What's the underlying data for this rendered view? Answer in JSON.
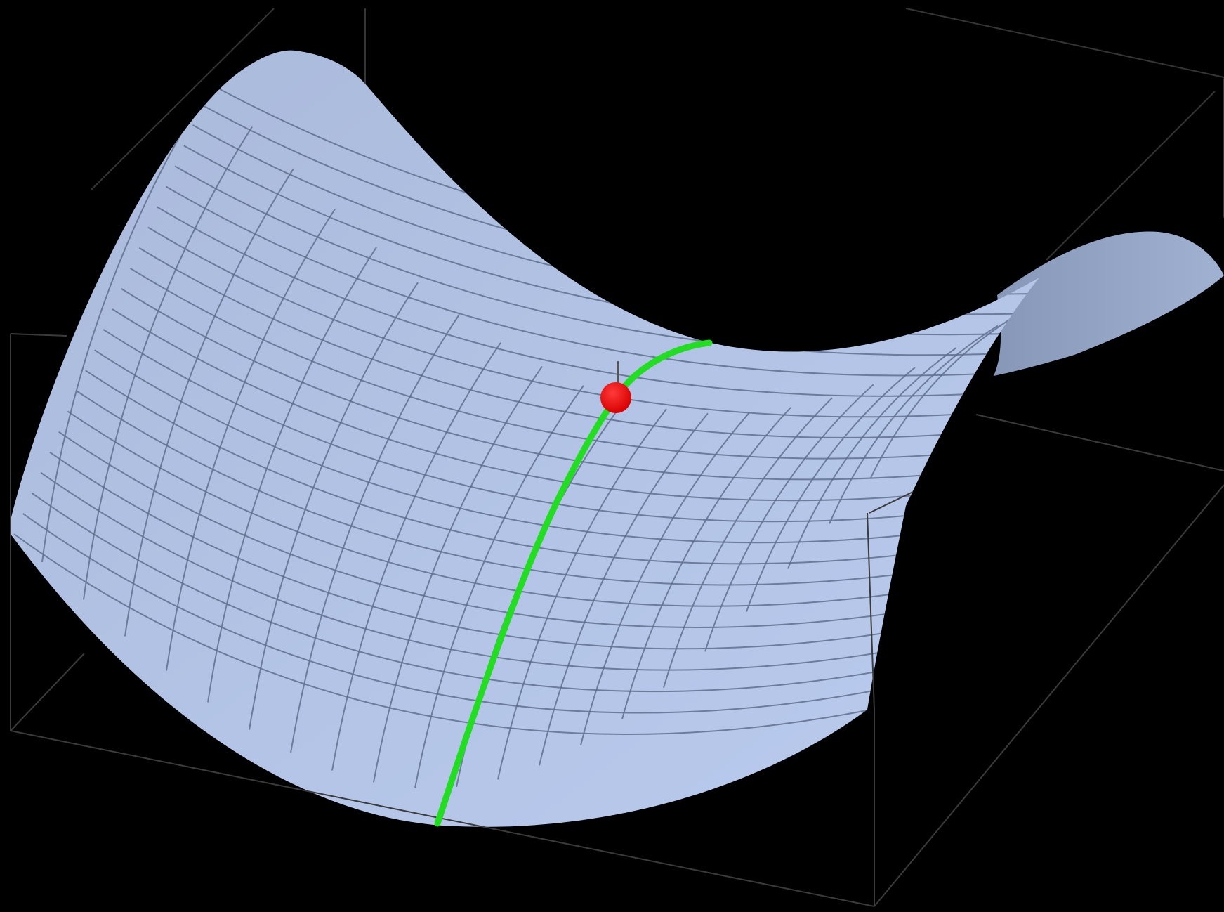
{
  "scene": {
    "background": "#000000",
    "surface_kind": "saddle (hyperbolic paraboloid)",
    "surface_color_light": "#b8c9ec",
    "surface_color_mid": "#a3b6de",
    "surface_color_dark": "#8a9ec6",
    "mesh_color": "#5f6f8c",
    "box_color": "#3a3a3a",
    "path_color": "#22dd22",
    "point_color": "#ee0000",
    "normal_color": "#555555"
  }
}
